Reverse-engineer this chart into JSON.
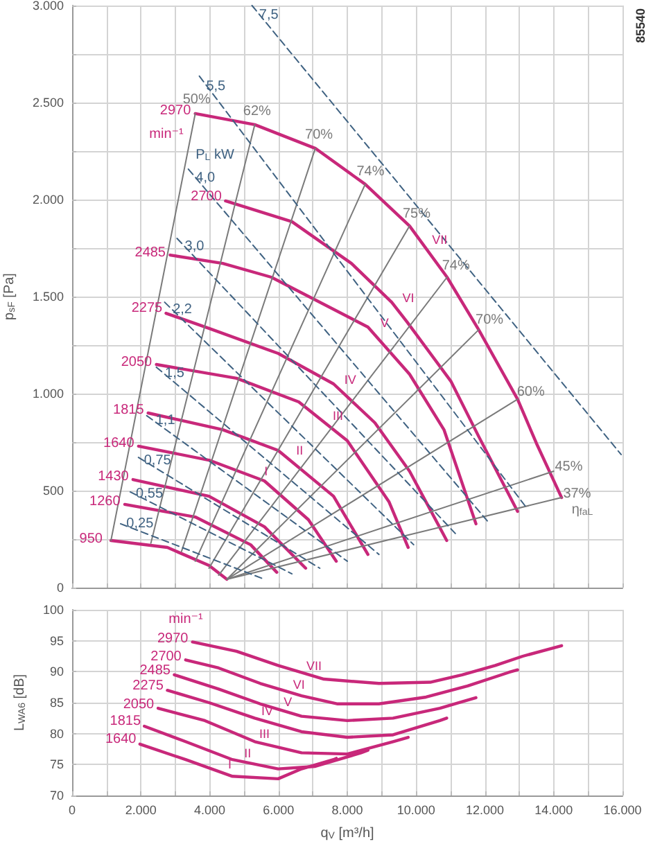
{
  "chart_data": [
    {
      "type": "line",
      "ylabel": "p$_{sF}$ [Pa]",
      "marker": "none",
      "grid": true,
      "tick_labels": "y",
      "xlim": [
        0,
        16000
      ],
      "ylim": [
        0,
        3000
      ],
      "xticks": [
        0,
        {
          "value": 1000,
          "label": null
        },
        {
          "value": 2000,
          "label": null
        },
        {
          "value": 3000,
          "label": null
        },
        {
          "value": 4000,
          "label": null
        },
        {
          "value": 5000,
          "label": null
        },
        {
          "value": 6000,
          "label": null
        },
        {
          "value": 7000,
          "label": null
        },
        {
          "value": 8000,
          "label": null
        },
        {
          "value": 9000,
          "label": null
        },
        {
          "value": 10000,
          "label": null
        },
        {
          "value": 11000,
          "label": null
        },
        {
          "value": 12000,
          "label": null
        },
        {
          "value": 13000,
          "label": null
        },
        {
          "value": 14000,
          "label": null
        },
        {
          "value": 15000,
          "label": null
        },
        {
          "value": 16000,
          "label": null
        }
      ],
      "yticks": [
        0,
        {
          "value": 250,
          "label": null
        },
        500,
        {
          "value": 750,
          "label": null
        },
        {
          "value": 1000,
          "label": "1.000"
        },
        {
          "value": 1250,
          "label": null
        },
        {
          "value": 1500,
          "label": "1.500"
        },
        {
          "value": 1750,
          "label": null
        },
        {
          "value": 2000,
          "label": "2.000"
        },
        {
          "value": 2250,
          "label": null
        },
        {
          "value": 2500,
          "label": "2.500"
        },
        {
          "value": 2750,
          "label": null
        },
        {
          "value": 3000,
          "label": "3.000"
        }
      ],
      "annotations": [
        "85540",
        "min⁻¹",
        "P$_{L}$ kW",
        "η$_{faL}$",
        {
          "text": "VII",
          "x": 10200,
          "y": 1770
        },
        {
          "text": "VI",
          "x": 9290,
          "y": 1471
        },
        {
          "text": "V",
          "x": 8600,
          "y": 1343
        },
        {
          "text": "IV",
          "x": 7600,
          "y": 1050
        },
        {
          "text": "III",
          "x": 7246,
          "y": 864
        },
        {
          "text": "II",
          "x": 6133,
          "y": 686
        },
        {
          "text": "I",
          "x": 5154,
          "y": 579
        }
      ],
      "series": [
        {
          "name": "2970",
          "color": "#c8287a",
          "line_style": "solid",
          "x": [
            3580,
            5310,
            7070,
            8520,
            9810,
            10900,
            11820,
            12950,
            13500,
            14230
          ],
          "values": [
            2443,
            2386,
            2264,
            2079,
            1864,
            1600,
            1329,
            971,
            743,
            464
          ]
        },
        {
          "name": "2700",
          "color": "#c8287a",
          "line_style": "solid",
          "x": [
            4460,
            6390,
            8120,
            9290,
            9730,
            11010,
            11820,
            12950
          ],
          "values": [
            1993,
            1886,
            1671,
            1471,
            1371,
            1064,
            779,
            393
          ]
        },
        {
          "name": "2485",
          "color": "#c8287a",
          "line_style": "solid",
          "x": [
            2850,
            4380,
            5790,
            8600,
            9810,
            10810,
            11740
          ],
          "values": [
            1714,
            1671,
            1600,
            1343,
            1100,
            814,
            329
          ]
        },
        {
          "name": "2275",
          "color": "#c8287a",
          "line_style": "solid",
          "x": [
            2730,
            3980,
            5990,
            7600,
            8800,
            9810,
            10890
          ],
          "values": [
            1414,
            1336,
            1207,
            1050,
            850,
            600,
            243
          ]
        },
        {
          "name": "2050",
          "color": "#c8287a",
          "line_style": "solid",
          "x": [
            2450,
            4780,
            6590,
            8000,
            9210,
            9770
          ],
          "values": [
            1150,
            1079,
            957,
            757,
            443,
            207
          ]
        },
        {
          "name": "1815",
          "color": "#c8287a",
          "line_style": "solid",
          "x": [
            2210,
            4380,
            5990,
            7600,
            8600
          ],
          "values": [
            900,
            814,
            707,
            471,
            171
          ]
        },
        {
          "name": "1640",
          "color": "#c8287a",
          "line_style": "solid",
          "x": [
            1930,
            3980,
            5590,
            6870,
            7680
          ],
          "values": [
            729,
            657,
            550,
            350,
            136
          ]
        },
        {
          "name": "1430",
          "color": "#c8287a",
          "line_style": "solid",
          "x": [
            1770,
            3980,
            5590,
            6790
          ],
          "values": [
            557,
            471,
            314,
            100
          ]
        },
        {
          "name": "1260",
          "color": "#c8287a",
          "line_style": "solid",
          "x": [
            1530,
            3580,
            5190,
            5950
          ],
          "values": [
            429,
            364,
            221,
            79
          ]
        },
        {
          "name": "950",
          "color": "#c8287a",
          "line_style": "solid",
          "x": [
            1130,
            2770,
            3980,
            4500
          ],
          "values": [
            243,
            207,
            114,
            43
          ]
        },
        {
          "name": "50%",
          "color": "#7a7a7a",
          "line_style": "solid",
          "x": [
            3580,
            1130
          ],
          "values": [
            2443,
            243
          ]
        },
        {
          "name": "62%",
          "color": "#7a7a7a",
          "line_style": "solid",
          "x": [
            5310,
            2290
          ],
          "values": [
            2386,
            229
          ]
        },
        {
          "name": "70%",
          "color": "#7a7a7a",
          "line_style": "solid",
          "x": [
            7070,
            3180
          ],
          "values": [
            2264,
            186
          ]
        },
        {
          "name": "74%",
          "color": "#7a7a7a",
          "line_style": "solid",
          "x": [
            8520,
            3580
          ],
          "values": [
            2079,
            136
          ]
        },
        {
          "name": "75%",
          "color": "#7a7a7a",
          "line_style": "solid",
          "x": [
            9810,
            3980
          ],
          "values": [
            1864,
            100
          ]
        },
        {
          "name": "74%",
          "color": "#7a7a7a",
          "line_style": "solid",
          "x": [
            10900,
            4260
          ],
          "values": [
            1600,
            64
          ]
        },
        {
          "name": "70%",
          "color": "#7a7a7a",
          "line_style": "solid",
          "x": [
            11820,
            4500
          ],
          "values": [
            1329,
            43
          ]
        },
        {
          "name": "60%",
          "color": "#7a7a7a",
          "line_style": "solid",
          "x": [
            12950,
            4500
          ],
          "values": [
            971,
            43
          ]
        },
        {
          "name": "45%",
          "color": "#7a7a7a",
          "line_style": "solid",
          "x": [
            14000,
            4500
          ],
          "values": [
            600,
            43
          ]
        },
        {
          "name": "37%",
          "color": "#7a7a7a",
          "line_style": "solid",
          "x": [
            14230,
            4500
          ],
          "values": [
            464,
            43
          ]
        },
        {
          "name": "7,5",
          "color": "#3f6282",
          "line_style": "dashed",
          "x": [
            5230,
            15960
          ],
          "values": [
            3000,
            686
          ]
        },
        {
          "name": "5,5",
          "color": "#3f6282",
          "line_style": "dashed",
          "x": [
            3700,
            13230
          ],
          "values": [
            2636,
            407
          ]
        },
        {
          "name": "4,0",
          "color": "#3f6282",
          "line_style": "dashed",
          "x": [
            3380,
            12140
          ],
          "values": [
            2157,
            329
          ]
        },
        {
          "name": "3,0",
          "color": "#3f6282",
          "line_style": "dashed",
          "x": [
            3050,
            11140
          ],
          "values": [
            1800,
            279
          ]
        },
        {
          "name": "2,2",
          "color": "#3f6282",
          "line_style": "dashed",
          "x": [
            2690,
            9930
          ],
          "values": [
            1471,
            221
          ]
        },
        {
          "name": "1,5",
          "color": "#3f6282",
          "line_style": "dashed",
          "x": [
            2450,
            8920
          ],
          "values": [
            1136,
            171
          ]
        },
        {
          "name": "1,1",
          "color": "#3f6282",
          "line_style": "dashed",
          "x": [
            2170,
            8000
          ],
          "values": [
            886,
            136
          ]
        },
        {
          "name": "0,75",
          "color": "#3f6282",
          "line_style": "dashed",
          "x": [
            1930,
            7200
          ],
          "values": [
            671,
            100
          ]
        },
        {
          "name": "0,55",
          "color": "#3f6282",
          "line_style": "dashed",
          "x": [
            1690,
            6390
          ],
          "values": [
            493,
            71
          ]
        },
        {
          "name": "0,25",
          "color": "#3f6282",
          "line_style": "dashed",
          "x": [
            1410,
            5590
          ],
          "values": [
            329,
            43
          ]
        }
      ]
    },
    {
      "type": "line",
      "xlabel": "q$_{V}$ [m³/h]",
      "ylabel": "L$_{WA6}$ [dB]",
      "marker": "none",
      "grid": true,
      "xlim": [
        0,
        16000
      ],
      "ylim": [
        70,
        100
      ],
      "xticks": [
        0,
        {
          "value": 1000,
          "label": null
        },
        {
          "value": 2000,
          "label": "2.000"
        },
        {
          "value": 3000,
          "label": null
        },
        {
          "value": 4000,
          "label": "4.000"
        },
        {
          "value": 5000,
          "label": null
        },
        {
          "value": 6000,
          "label": "6.000"
        },
        {
          "value": 7000,
          "label": null
        },
        {
          "value": 8000,
          "label": "8.000"
        },
        {
          "value": 9000,
          "label": null
        },
        {
          "value": 10000,
          "label": "10.000"
        },
        {
          "value": 11000,
          "label": null
        },
        {
          "value": 12000,
          "label": "12.000"
        },
        {
          "value": 13000,
          "label": null
        },
        {
          "value": 14000,
          "label": "14.000"
        },
        {
          "value": 15000,
          "label": null
        },
        {
          "value": 16000,
          "label": "16.000"
        }
      ],
      "yticks": [
        70,
        75,
        80,
        85,
        90,
        95,
        100
      ],
      "annotations": [
        "min⁻¹",
        {
          "text": "VII",
          "x": 6750,
          "y": 89.7
        },
        {
          "text": "VI",
          "x": 6310,
          "y": 86.7
        },
        {
          "text": "V",
          "x": 5990,
          "y": 83.9
        },
        {
          "text": "IV",
          "x": 5390,
          "y": 82.4
        },
        {
          "text": "III",
          "x": 5310,
          "y": 78.7
        },
        {
          "text": "II",
          "x": 4820,
          "y": 75.6
        },
        {
          "text": "I",
          "x": 4300,
          "y": 73.8
        }
      ],
      "series": [
        {
          "name": "2970",
          "color": "#c8287a",
          "line_style": "solid",
          "x": [
            3500,
            4780,
            5990,
            7320,
            8920,
            10410,
            11340,
            12300,
            13100,
            14230
          ],
          "values": [
            94.8,
            93.3,
            91,
            88.8,
            88.1,
            88.3,
            89.5,
            91,
            92.5,
            94.2
          ]
        },
        {
          "name": "2700",
          "color": "#c8287a",
          "line_style": "solid",
          "x": [
            3300,
            4260,
            5470,
            6670,
            7720,
            8920,
            10290,
            11500,
            12700,
            12950
          ],
          "values": [
            91.9,
            90.6,
            88.1,
            86.1,
            84.8,
            84.8,
            85.9,
            87.7,
            89.9,
            90.3
          ]
        },
        {
          "name": "2485",
          "color": "#c8287a",
          "line_style": "solid",
          "x": [
            2970,
            4260,
            5470,
            6670,
            8000,
            9330,
            10690,
            11740
          ],
          "values": [
            89.5,
            87.2,
            84.8,
            82.8,
            82.1,
            82.5,
            84.1,
            85.8
          ]
        },
        {
          "name": "2275",
          "color": "#c8287a",
          "line_style": "solid",
          "x": [
            2770,
            3980,
            5310,
            6670,
            8000,
            9330,
            10690,
            10890
          ],
          "values": [
            87,
            85,
            82.5,
            80.3,
            79.4,
            79.8,
            82.1,
            82.5
          ]
        },
        {
          "name": "2050",
          "color": "#c8287a",
          "line_style": "solid",
          "x": [
            2500,
            3860,
            5310,
            6670,
            8000,
            9330,
            9770
          ],
          "values": [
            84.1,
            82.1,
            78.7,
            76.9,
            76.7,
            78.7,
            79.4
          ]
        },
        {
          "name": "1815",
          "color": "#c8287a",
          "line_style": "solid",
          "x": [
            2100,
            3300,
            4660,
            5990,
            7070,
            8400,
            8600
          ],
          "values": [
            81.2,
            78.7,
            75.8,
            74.3,
            74.7,
            76.9,
            77.3
          ]
        },
        {
          "name": "1640",
          "color": "#c8287a",
          "line_style": "solid",
          "x": [
            1970,
            3300,
            4660,
            5990,
            6670,
            7600,
            7680
          ],
          "values": [
            78.3,
            75.8,
            73.1,
            72.7,
            74.3,
            75.8,
            76
          ]
        }
      ]
    }
  ]
}
